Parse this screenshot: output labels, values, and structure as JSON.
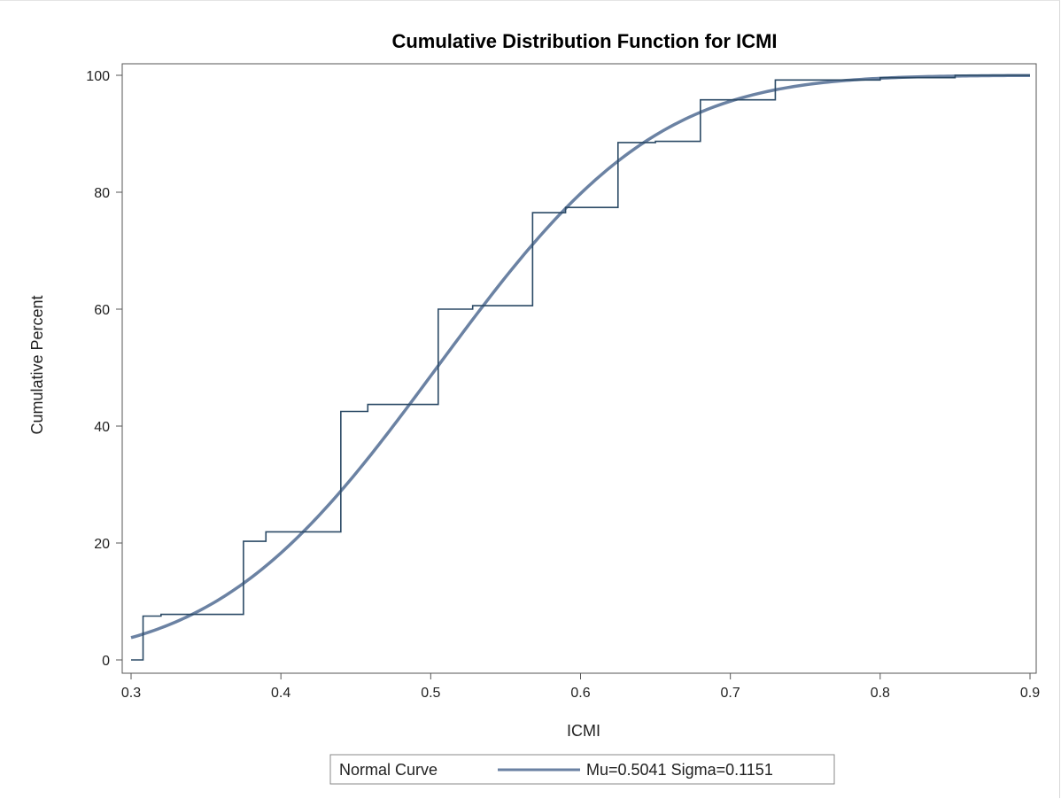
{
  "chart_data": {
    "type": "line",
    "title": "Cumulative Distribution Function for ICMI",
    "xlabel": "ICMI",
    "ylabel": "Cumulative Percent",
    "xlim": [
      0.3,
      0.9
    ],
    "ylim": [
      0,
      100
    ],
    "x_ticks": [
      "0.3",
      "0.4",
      "0.5",
      "0.6",
      "0.7",
      "0.8",
      "0.9"
    ],
    "y_ticks": [
      "0",
      "20",
      "40",
      "60",
      "80",
      "100"
    ],
    "grid": false,
    "legend": {
      "placement": "bottom",
      "title": "Normal Curve",
      "entry": "Mu=0.5041 Sigma=0.1151"
    },
    "series": [
      {
        "kind": "empirical-cdf-step",
        "color": "#2b4a66",
        "points": [
          [
            0.3,
            0.0
          ],
          [
            0.308,
            0.0
          ],
          [
            0.308,
            7.5
          ],
          [
            0.32,
            7.5
          ],
          [
            0.32,
            7.8
          ],
          [
            0.375,
            7.8
          ],
          [
            0.375,
            20.3
          ],
          [
            0.39,
            20.3
          ],
          [
            0.39,
            21.9
          ],
          [
            0.44,
            21.9
          ],
          [
            0.44,
            42.5
          ],
          [
            0.458,
            42.5
          ],
          [
            0.458,
            43.7
          ],
          [
            0.505,
            43.7
          ],
          [
            0.505,
            60.0
          ],
          [
            0.528,
            60.0
          ],
          [
            0.528,
            60.6
          ],
          [
            0.568,
            60.6
          ],
          [
            0.568,
            76.5
          ],
          [
            0.59,
            76.5
          ],
          [
            0.59,
            77.4
          ],
          [
            0.625,
            77.4
          ],
          [
            0.625,
            88.5
          ],
          [
            0.65,
            88.5
          ],
          [
            0.65,
            88.7
          ],
          [
            0.68,
            88.7
          ],
          [
            0.68,
            95.8
          ],
          [
            0.73,
            95.8
          ],
          [
            0.73,
            99.2
          ],
          [
            0.8,
            99.2
          ],
          [
            0.8,
            99.6
          ],
          [
            0.85,
            99.6
          ],
          [
            0.85,
            100.0
          ],
          [
            0.9,
            100.0
          ]
        ]
      },
      {
        "name": "Mu=0.5041 Sigma=0.1151",
        "kind": "normal-cdf",
        "color": "#6b82a3",
        "mu": 0.5041,
        "sigma": 0.1151,
        "x_range": [
          0.3,
          0.9
        ]
      }
    ]
  }
}
